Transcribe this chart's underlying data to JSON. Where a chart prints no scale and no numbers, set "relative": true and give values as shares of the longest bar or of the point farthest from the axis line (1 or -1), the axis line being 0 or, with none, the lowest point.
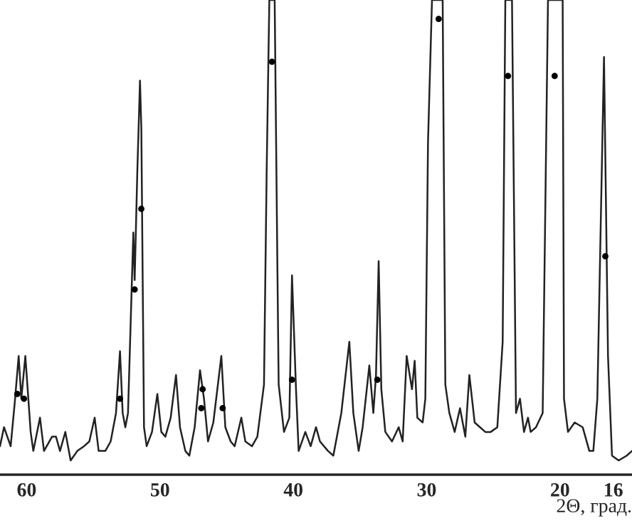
{
  "chart_data": {
    "type": "line",
    "relative": true,
    "xlabel": "2Θ, град.",
    "xlim": [
      62.0,
      14.6
    ],
    "xticks": [
      60,
      50,
      40,
      30,
      20,
      16
    ],
    "grid": false,
    "series": [
      {
        "color": "#222222",
        "line_style": "solid",
        "x": [
          62.0,
          61.7,
          61.2,
          60.9,
          60.6,
          60.4,
          60.1,
          59.7,
          59.5,
          59.0,
          58.7,
          58.1,
          57.8,
          57.5,
          57.1,
          56.7,
          56.2,
          55.7,
          55.3,
          54.9,
          54.6,
          54.1,
          53.7,
          53.3,
          53.0,
          52.8,
          52.6,
          52.4,
          52.0,
          51.9,
          51.7,
          51.5,
          51.4,
          51.2,
          51.0,
          50.6,
          50.2,
          49.9,
          49.6,
          49.2,
          48.8,
          48.5,
          48.1,
          47.8,
          47.4,
          47.0,
          46.7,
          46.4,
          46.0,
          45.4,
          45.1,
          44.7,
          44.4,
          43.9,
          43.6,
          43.1,
          42.7,
          42.2,
          42.0,
          41.8,
          41.4,
          41.2,
          41.1,
          40.7,
          40.3,
          40.1,
          39.8,
          39.6,
          39.1,
          38.7,
          38.3,
          38.0,
          37.4,
          37.0,
          36.4,
          35.8,
          35.5,
          35.1,
          34.8,
          34.3,
          34.0,
          33.8,
          33.6,
          33.4,
          33.1,
          32.6,
          32.1,
          31.8,
          31.5,
          31.1,
          30.9,
          30.7,
          30.3,
          30.1,
          29.9,
          29.6,
          28.8,
          28.6,
          28.3,
          27.9,
          27.5,
          27.1,
          26.8,
          26.4,
          26.0,
          25.6,
          25.2,
          24.7,
          24.3,
          24.1,
          23.6,
          23.3,
          23.0,
          22.7,
          22.4,
          22.2,
          21.8,
          21.3,
          20.9,
          19.8,
          19.7,
          19.4,
          18.9,
          18.3,
          17.8,
          17.5,
          17.2,
          16.7,
          16.4,
          16.1,
          15.6,
          15.0,
          14.6
        ],
        "values": [
          0.06,
          0.1,
          0.06,
          0.15,
          0.25,
          0.16,
          0.25,
          0.09,
          0.05,
          0.12,
          0.05,
          0.08,
          0.08,
          0.05,
          0.09,
          0.03,
          0.05,
          0.06,
          0.07,
          0.12,
          0.05,
          0.05,
          0.07,
          0.13,
          0.26,
          0.13,
          0.1,
          0.13,
          0.51,
          0.41,
          0.64,
          0.83,
          0.73,
          0.1,
          0.06,
          0.09,
          0.17,
          0.09,
          0.08,
          0.12,
          0.21,
          0.1,
          0.05,
          0.04,
          0.1,
          0.22,
          0.16,
          0.07,
          0.11,
          0.25,
          0.1,
          0.07,
          0.06,
          0.12,
          0.07,
          0.06,
          0.08,
          0.19,
          0.64,
          1.0,
          1.0,
          0.45,
          0.19,
          0.09,
          0.12,
          0.42,
          0.18,
          0.05,
          0.09,
          0.06,
          0.1,
          0.07,
          0.05,
          0.04,
          0.13,
          0.28,
          0.13,
          0.05,
          0.1,
          0.23,
          0.13,
          0.21,
          0.45,
          0.18,
          0.09,
          0.07,
          0.1,
          0.07,
          0.25,
          0.18,
          0.24,
          0.12,
          0.11,
          0.16,
          0.7,
          1.0,
          1.0,
          0.19,
          0.13,
          0.09,
          0.14,
          0.08,
          0.21,
          0.11,
          0.1,
          0.09,
          0.09,
          0.1,
          0.28,
          1.0,
          1.0,
          0.13,
          0.16,
          0.09,
          0.12,
          0.09,
          0.1,
          0.13,
          1.0,
          1.0,
          0.16,
          0.09,
          0.11,
          0.1,
          0.05,
          0.05,
          0.16,
          0.88,
          0.25,
          0.04,
          0.03,
          0.04,
          0.05
        ]
      },
      {
        "type": "scatter",
        "color": "#000000",
        "marker": "circle",
        "x": [
          60.7,
          60.2,
          53.0,
          51.9,
          51.4,
          46.9,
          46.8,
          45.3,
          41.6,
          40.1,
          33.7,
          29.1,
          23.9,
          20.4,
          16.6
        ],
        "values": [
          0.17,
          0.16,
          0.16,
          0.39,
          0.56,
          0.14,
          0.18,
          0.14,
          0.87,
          0.2,
          0.2,
          0.96,
          0.84,
          0.84,
          0.46
        ]
      }
    ]
  }
}
